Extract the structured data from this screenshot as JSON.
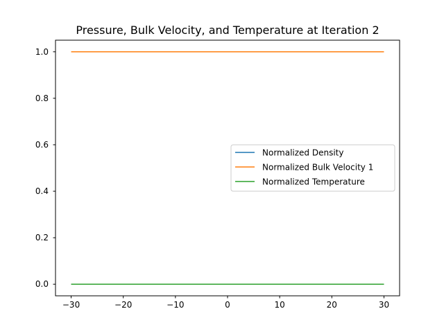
{
  "chart_data": {
    "type": "line",
    "title": "Pressure, Bulk Velocity, and Temperature at Iteration 2",
    "xlabel": "",
    "ylabel": "",
    "xlim": [
      -33,
      33
    ],
    "ylim": [
      -0.05,
      1.05
    ],
    "x_ticks": [
      -30,
      -20,
      -10,
      0,
      10,
      20,
      30
    ],
    "x_tick_labels": [
      "−30",
      "−20",
      "−10",
      "0",
      "10",
      "20",
      "30"
    ],
    "y_ticks": [
      0.0,
      0.2,
      0.4,
      0.6,
      0.8,
      1.0
    ],
    "y_tick_labels": [
      "0.0",
      "0.2",
      "0.4",
      "0.6",
      "0.8",
      "1.0"
    ],
    "grid": false,
    "legend_position": "center-right",
    "series": [
      {
        "name": "Normalized Density",
        "color": "#1f77b4",
        "x": [
          -30,
          30
        ],
        "y": [
          0.0,
          0.0
        ]
      },
      {
        "name": "Normalized Bulk Velocity 1",
        "color": "#ff7f0e",
        "x": [
          -30,
          30
        ],
        "y": [
          1.0,
          1.0
        ]
      },
      {
        "name": "Normalized Temperature",
        "color": "#2ca02c",
        "x": [
          -30,
          30
        ],
        "y": [
          0.0,
          0.0
        ]
      }
    ]
  }
}
